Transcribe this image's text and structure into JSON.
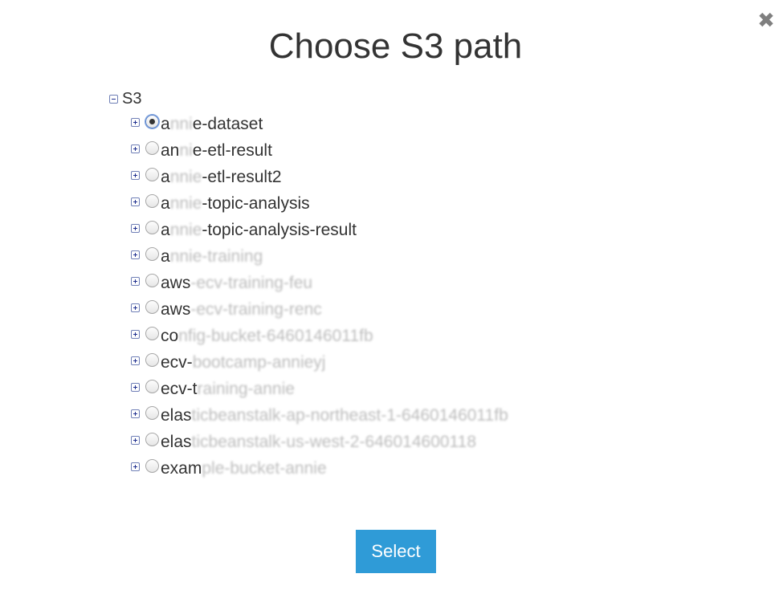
{
  "dialog": {
    "title": "Choose S3 path",
    "close_icon": "close-x-icon",
    "select_label": "Select"
  },
  "tree": {
    "root_label": "S3",
    "root_expanded": true,
    "nodes": [
      {
        "prefix": "a",
        "obscured": "nni",
        "suffix": "e-dataset",
        "selected": true
      },
      {
        "prefix": "an",
        "obscured": "ni",
        "suffix": "e-etl-result",
        "selected": false
      },
      {
        "prefix": "a",
        "obscured": "nnie",
        "suffix": "-etl-result2",
        "selected": false
      },
      {
        "prefix": "a",
        "obscured": "nnie",
        "suffix": "-topic-analysis",
        "selected": false
      },
      {
        "prefix": "a",
        "obscured": "nnie",
        "suffix": "-topic-analysis-result",
        "selected": false
      },
      {
        "prefix": "a",
        "obscured": "nnie-training",
        "suffix": "",
        "selected": false
      },
      {
        "prefix": "aws",
        "obscured": "-ecv-training-feu",
        "suffix": "",
        "selected": false
      },
      {
        "prefix": "aws",
        "obscured": "-ecv-training-renc",
        "suffix": "",
        "selected": false
      },
      {
        "prefix": "co",
        "obscured": "nfig-bucket-6460146011fb",
        "suffix": "",
        "selected": false
      },
      {
        "prefix": "ecv-",
        "obscured": "bootcamp-annieyj",
        "suffix": "",
        "selected": false
      },
      {
        "prefix": "ecv-t",
        "obscured": "raining-annie",
        "suffix": "",
        "selected": false
      },
      {
        "prefix": "elas",
        "obscured": "ticbeanstalk-ap-northeast-1-6460146011fb",
        "suffix": "",
        "selected": false
      },
      {
        "prefix": "elas",
        "obscured": "ticbeanstalk-us-west-2-646014600118",
        "suffix": "",
        "selected": false
      },
      {
        "prefix": "exam",
        "obscured": "ple-bucket-annie",
        "suffix": "",
        "selected": false
      }
    ]
  }
}
